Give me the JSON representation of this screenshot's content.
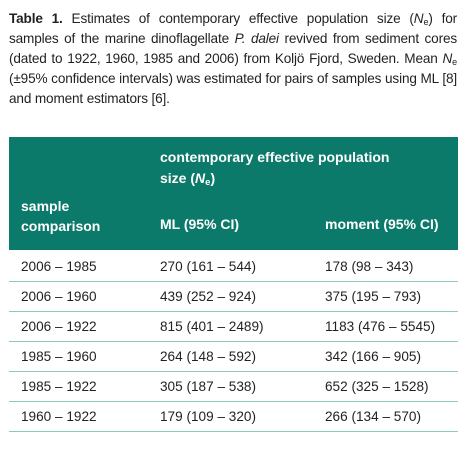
{
  "caption": {
    "label": "Table 1.",
    "text_part1": " Estimates of contemporary effective population size (",
    "ne_symbol": "N",
    "ne_sub": "e",
    "text_part2": ") for samples of the marine dinoflagellate ",
    "species": "P. dalei",
    "text_part3": " revived from sediment cores (dated to 1922, 1960, 1985 and 2006) from Koljö Fjord, Sweden. Mean ",
    "text_part4": " (±95% confidence intervals) was estimated for pairs of samples using ML [8] and moment estimators [6]."
  },
  "table": {
    "span_header_line1": "contemporary effective population",
    "span_header_line2_prefix": "size (",
    "span_header_symbol": "N",
    "span_header_sub": "e",
    "span_header_line2_suffix": ")",
    "col_sample_line1": "sample",
    "col_sample_line2": "comparison",
    "col_ml": "ML (95% CI)",
    "col_moment": "moment (95% CI)",
    "rows": [
      {
        "comparison": "2006 – 1985",
        "ml": "270 (161 – 544)",
        "moment": "178 (98 – 343)"
      },
      {
        "comparison": "2006 – 1960",
        "ml": "439 (252 – 924)",
        "moment": "375 (195 – 793)"
      },
      {
        "comparison": "2006 – 1922",
        "ml": "815 (401 – 2489)",
        "moment": "1183 (476 – 5545)"
      },
      {
        "comparison": "1985 – 1960",
        "ml": "264 (148 – 592)",
        "moment": "342 (166 – 905)"
      },
      {
        "comparison": "1985 – 1922",
        "ml": "305 (187 – 538)",
        "moment": "652 (325 – 1528)"
      },
      {
        "comparison": "1960 – 1922",
        "ml": "179 (109 – 320)",
        "moment": "266 (134 – 570)"
      }
    ]
  },
  "colors": {
    "header_bg": "#0c7a6a",
    "header_text": "#ffffff",
    "row_rule": "#8fc8bd"
  }
}
